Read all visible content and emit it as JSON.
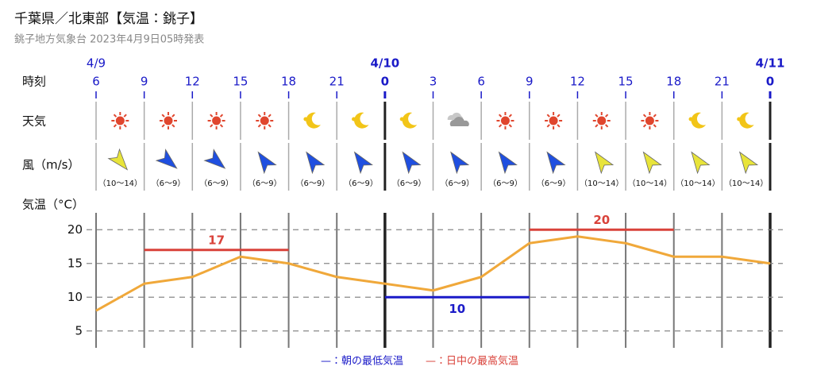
{
  "header": {
    "title": "千葉県／北東部【気温：銚子】",
    "subtitle": "銚子地方気象台 2023年4月9日05時発表"
  },
  "rows": {
    "time": "時刻",
    "weather": "天気",
    "wind": "風（m/s）"
  },
  "weather": [
    "sun",
    "sun",
    "sun",
    "sun",
    "moon",
    "moon",
    "moon",
    "cloud",
    "sun",
    "sun",
    "sun",
    "sun",
    "moon",
    "moon"
  ],
  "wind": [
    {
      "label": "（10〜14）",
      "color": "#e8e43a",
      "deg": 50
    },
    {
      "label": "（6〜9）",
      "color": "#1f4fe0",
      "deg": 40
    },
    {
      "label": "（6〜9）",
      "color": "#1f4fe0",
      "deg": 40
    },
    {
      "label": "（6〜9）",
      "color": "#1f4fe0",
      "deg": -125
    },
    {
      "label": "（6〜9）",
      "color": "#1f4fe0",
      "deg": -125
    },
    {
      "label": "（6〜9）",
      "color": "#1f4fe0",
      "deg": -125
    },
    {
      "label": "（6〜9）",
      "color": "#1f4fe0",
      "deg": -125
    },
    {
      "label": "（6〜9）",
      "color": "#1f4fe0",
      "deg": -125
    },
    {
      "label": "（6〜9）",
      "color": "#1f4fe0",
      "deg": -125
    },
    {
      "label": "（6〜9）",
      "color": "#1f4fe0",
      "deg": -125
    },
    {
      "label": "（10〜14）",
      "color": "#e8e43a",
      "deg": -125
    },
    {
      "label": "（10〜14）",
      "color": "#e8e43a",
      "deg": -125
    },
    {
      "label": "（10〜14）",
      "color": "#e8e43a",
      "deg": -125
    },
    {
      "label": "（10〜14）",
      "color": "#e8e43a",
      "deg": -125
    }
  ],
  "chart_data": {
    "type": "line",
    "ylabel": "気温（°C）",
    "dates": [
      "4/9",
      null,
      null,
      null,
      null,
      null,
      "4/10",
      null,
      null,
      null,
      null,
      null,
      null,
      null,
      "4/11"
    ],
    "categories": [
      "6",
      "9",
      "12",
      "15",
      "18",
      "21",
      "0",
      "3",
      "6",
      "9",
      "12",
      "15",
      "18",
      "21",
      "0"
    ],
    "values": [
      8,
      12,
      13,
      16,
      15,
      13,
      12,
      11,
      13,
      18,
      19,
      18,
      16,
      16,
      15
    ],
    "color": "#f0a83a",
    "ylim": [
      2.5,
      22.5
    ],
    "yticks": [
      5,
      10,
      15,
      20
    ],
    "grid": true,
    "bands": [
      {
        "value": 17,
        "from": 1,
        "to": 4,
        "color": "#d9423a"
      },
      {
        "value": 10,
        "from": 6,
        "to": 9,
        "color": "#1a1ac8"
      },
      {
        "value": 20,
        "from": 9,
        "to": 12,
        "color": "#d9423a"
      }
    ],
    "legend": [
      {
        "label": "—：朝の最低気温",
        "color": "#1a1ac8"
      },
      {
        "label": "—：日中の最高気温",
        "color": "#d9423a"
      }
    ]
  }
}
